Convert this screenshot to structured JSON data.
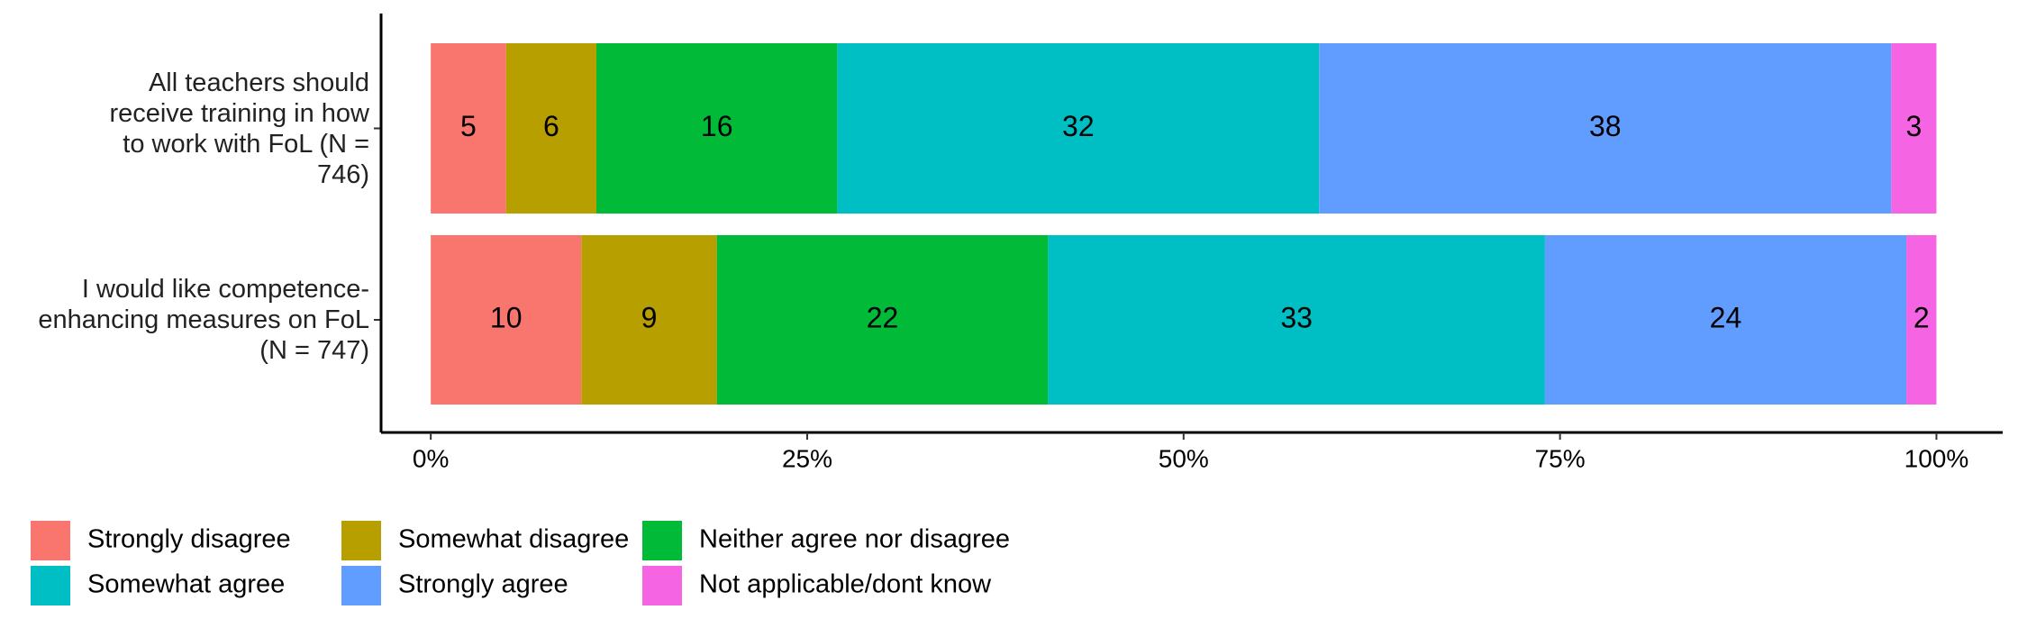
{
  "chart_data": {
    "type": "stacked-barh",
    "categories": [
      "All teachers should\nreceive training in how\nto work with FoL (N =\n746)",
      "I would like competence-\nenhancing measures on FoL\n(N = 747)"
    ],
    "series": [
      {
        "name": "Strongly disagree",
        "color": "#F8766D",
        "values": [
          5,
          10
        ]
      },
      {
        "name": "Somewhat disagree",
        "color": "#B79F00",
        "values": [
          6,
          9
        ]
      },
      {
        "name": "Neither agree nor disagree",
        "color": "#00BA38",
        "values": [
          16,
          22
        ]
      },
      {
        "name": "Somewhat agree",
        "color": "#00BFC4",
        "values": [
          32,
          33
        ]
      },
      {
        "name": "Strongly agree",
        "color": "#619CFF",
        "values": [
          38,
          24
        ]
      },
      {
        "name": "Not applicable/dont know",
        "color": "#F564E3",
        "values": [
          3,
          2
        ]
      }
    ],
    "xlim": [
      -3.3,
      104.4
    ],
    "xticks": [
      {
        "value": 0,
        "label": "0%"
      },
      {
        "value": 25,
        "label": "25%"
      },
      {
        "value": 50,
        "label": "50%"
      },
      {
        "value": 75,
        "label": "75%"
      },
      {
        "value": 100,
        "label": "100%"
      }
    ],
    "legend": "bottom"
  }
}
